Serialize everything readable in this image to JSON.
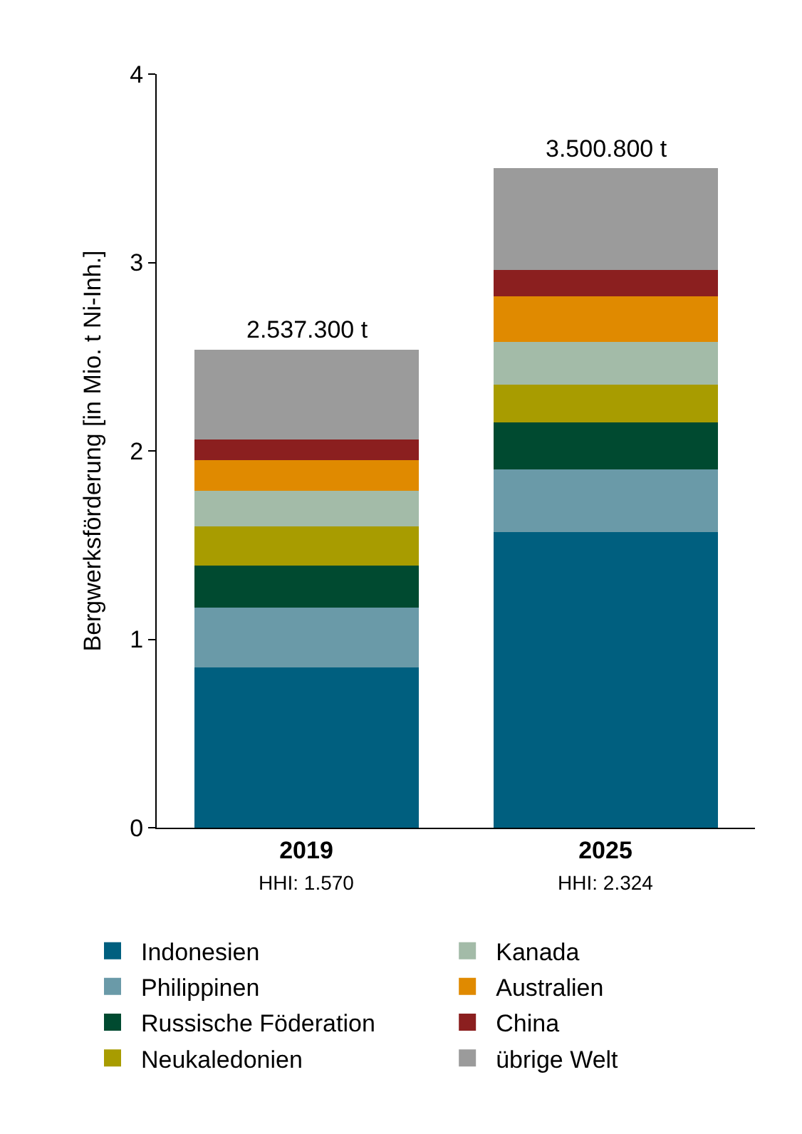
{
  "chart_data": {
    "type": "bar",
    "stacked": true,
    "ylabel": "Bergwerksförderung [in Mio. t Ni-Inh.]",
    "categories": [
      "2019",
      "2025"
    ],
    "series": [
      {
        "name": "Indonesien",
        "color": "#005f7f",
        "values": [
          0.85,
          1.57
        ]
      },
      {
        "name": "Philippinen",
        "color": "#6a9aa8",
        "values": [
          0.32,
          0.33
        ]
      },
      {
        "name": "Russische Föderation",
        "color": "#004a30",
        "values": [
          0.22,
          0.25
        ]
      },
      {
        "name": "Neukaledonien",
        "color": "#a89c00",
        "values": [
          0.21,
          0.2
        ]
      },
      {
        "name": "Kanada",
        "color": "#a3bba8",
        "values": [
          0.19,
          0.23
        ]
      },
      {
        "name": "Australien",
        "color": "#e08a00",
        "values": [
          0.16,
          0.24
        ]
      },
      {
        "name": "China",
        "color": "#8b1f1f",
        "values": [
          0.11,
          0.14
        ]
      },
      {
        "name": "übrige Welt",
        "color": "#9b9b9b",
        "values": [
          0.4773,
          0.5408
        ]
      }
    ],
    "totals": [
      "2.537.300 t",
      "3.500.800 t"
    ],
    "annotations": [
      "HHI: 1.570",
      "HHI: 2.324"
    ],
    "ylim": [
      0,
      4
    ],
    "yticks": [
      0,
      1,
      2,
      3,
      4
    ],
    "legend": "bottom"
  }
}
